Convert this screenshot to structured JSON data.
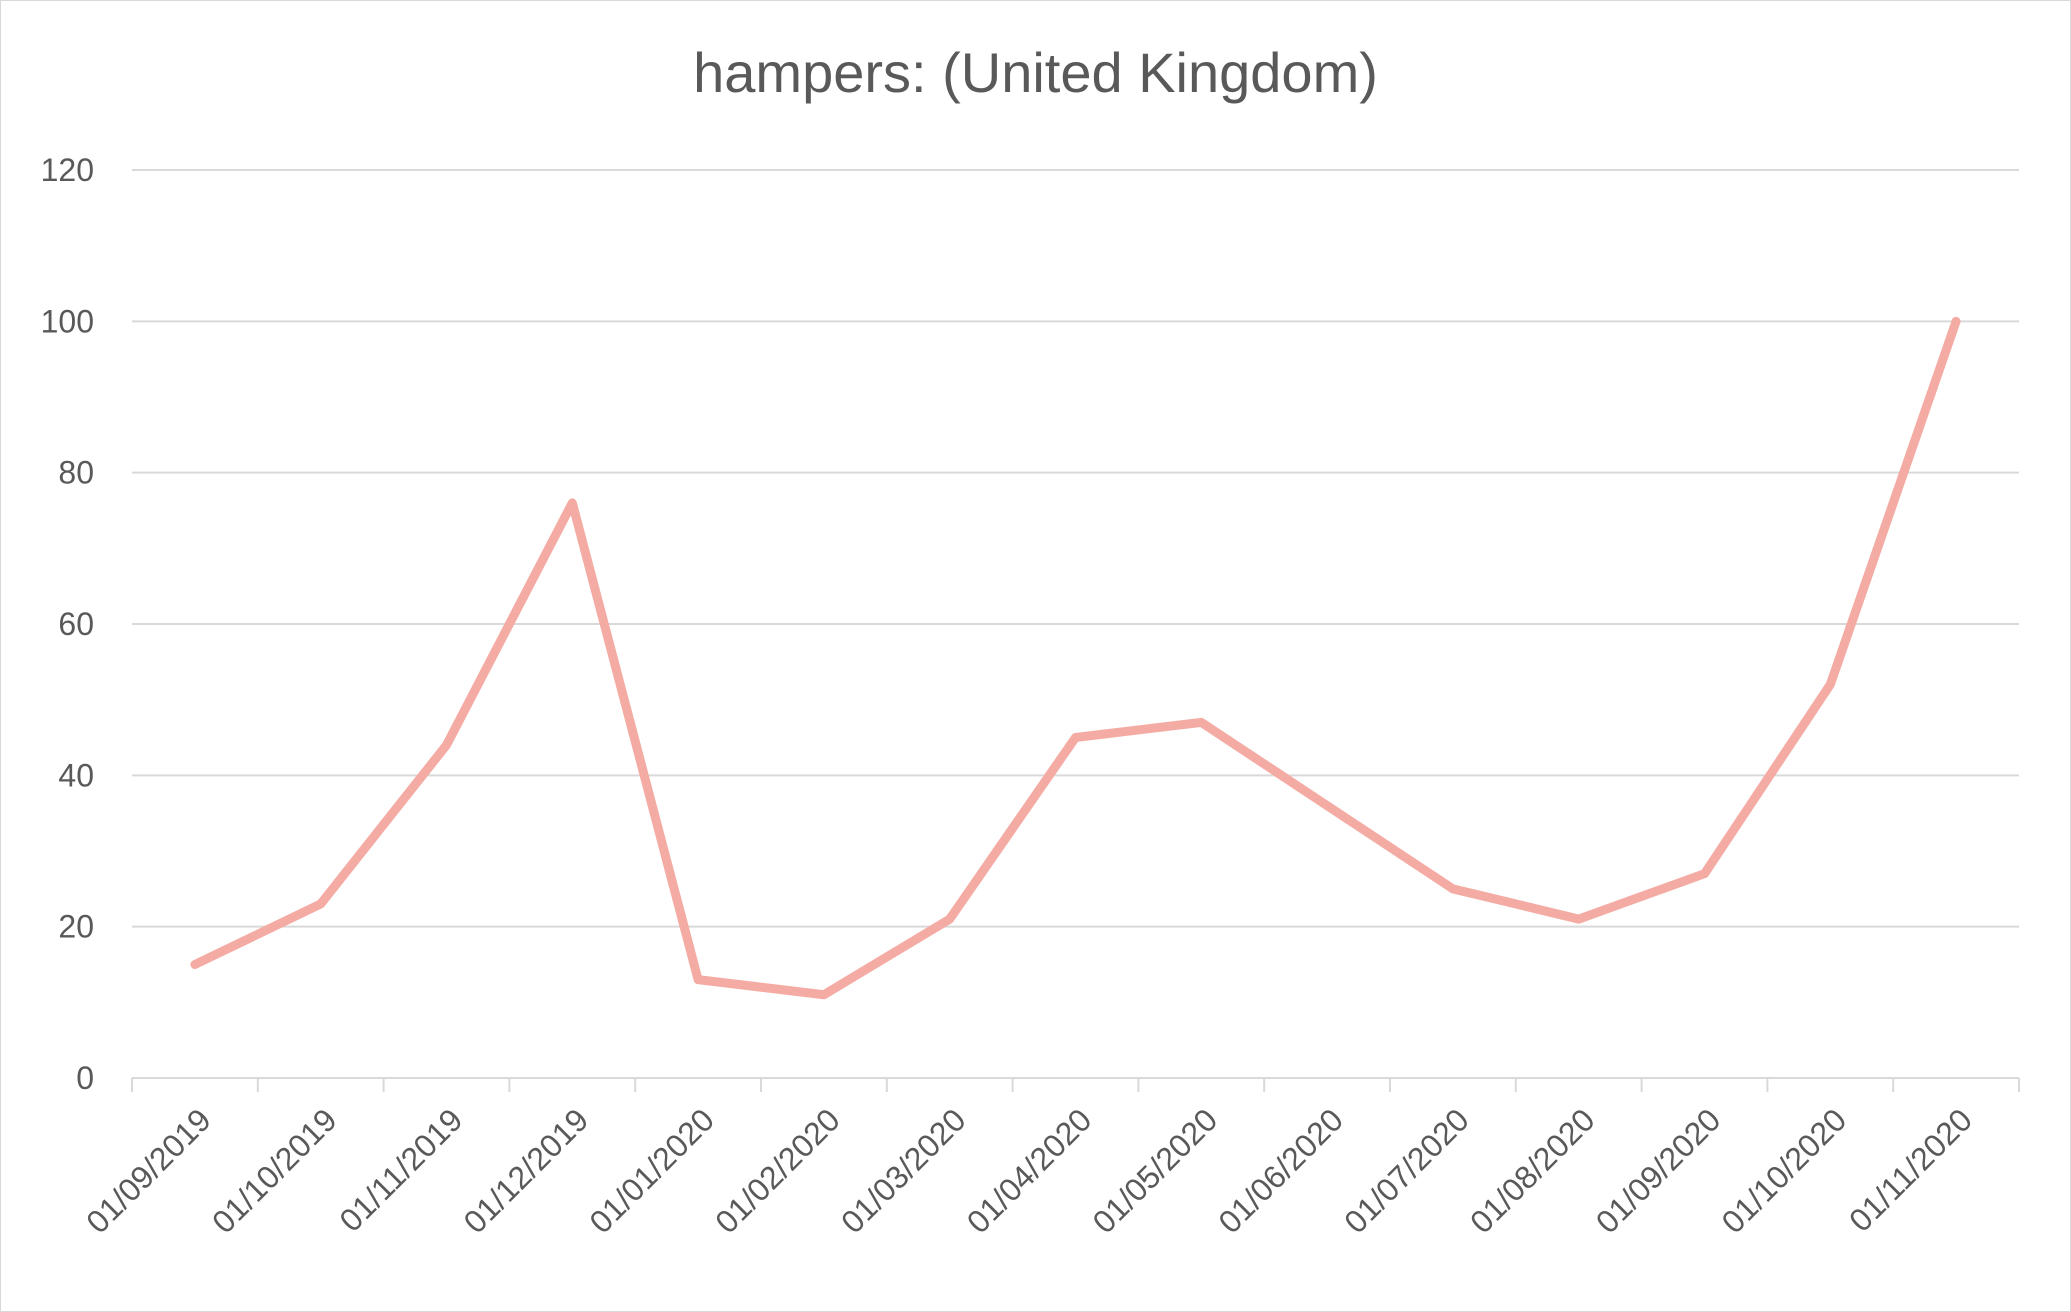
{
  "chart_data": {
    "type": "line",
    "title": "hampers: (United Kingdom)",
    "xlabel": "",
    "ylabel": "",
    "categories": [
      "01/09/2019",
      "01/10/2019",
      "01/11/2019",
      "01/12/2019",
      "01/01/2020",
      "01/02/2020",
      "01/03/2020",
      "01/04/2020",
      "01/05/2020",
      "01/06/2020",
      "01/07/2020",
      "01/08/2020",
      "01/09/2020",
      "01/10/2020",
      "01/11/2020"
    ],
    "series": [
      {
        "values": [
          15,
          23,
          44,
          76,
          13,
          11,
          21,
          45,
          47,
          36,
          25,
          21,
          27,
          52,
          100
        ],
        "color": "#f4aba3"
      }
    ],
    "ylim": [
      0,
      120
    ],
    "yticks": [
      "0",
      "20",
      "40",
      "60",
      "80",
      "100",
      "120"
    ],
    "grid": true,
    "legend": "none"
  }
}
